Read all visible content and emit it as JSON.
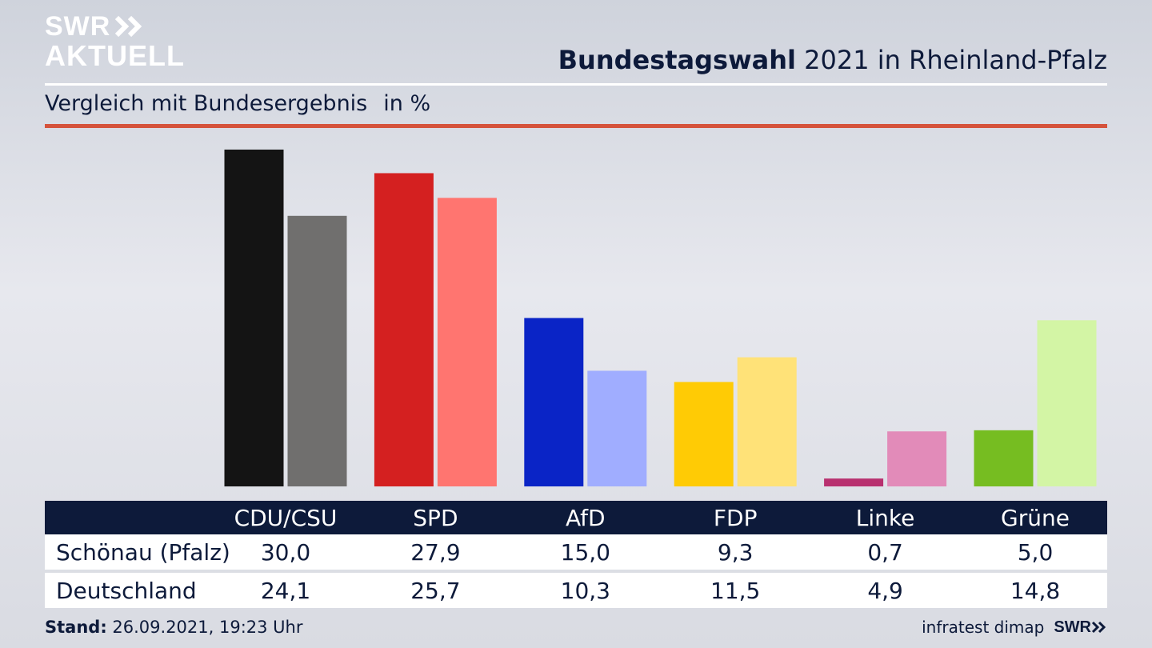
{
  "brand": {
    "logo_line1": "SWR",
    "logo_line2": "AKTUELL",
    "footer_logo": "SWR"
  },
  "header": {
    "title_bold": "Bundestagswahl",
    "title_rest": " 2021 in Rheinland-Pfalz"
  },
  "subtitle": {
    "text": "Vergleich mit Bundesergebnis",
    "unit": "in %"
  },
  "footer": {
    "stand_label": "Stand:",
    "stand_value": " 26.09.2021, 19:23 Uhr",
    "source": "infratest dimap"
  },
  "chart_data": {
    "type": "bar",
    "title": "Bundestagswahl 2021 in Rheinland-Pfalz",
    "subtitle": "Vergleich mit Bundesergebnis",
    "unit": "in %",
    "categories": [
      "CDU/CSU",
      "SPD",
      "AfD",
      "FDP",
      "Linke",
      "Grüne"
    ],
    "series": [
      {
        "name": "Schönau (Pfalz)",
        "values": [
          30.0,
          27.9,
          15.0,
          9.3,
          0.7,
          5.0
        ],
        "labels": [
          "30,0",
          "27,9",
          "15,0",
          "9,3",
          "0,7",
          "5,0"
        ]
      },
      {
        "name": "Deutschland",
        "values": [
          24.1,
          25.7,
          10.3,
          11.5,
          4.9,
          14.8
        ],
        "labels": [
          "24,1",
          "25,7",
          "10,3",
          "11,5",
          "4,9",
          "14,8"
        ]
      }
    ],
    "colors": {
      "primary": [
        "#141414",
        "#d42020",
        "#0a24c6",
        "#ffcb05",
        "#b8306f",
        "#76bd21"
      ],
      "secondary": [
        "#706f6e",
        "#ff7570",
        "#a0adff",
        "#ffe278",
        "#e28bb9",
        "#d3f5a5"
      ]
    },
    "ylim": [
      0,
      30
    ],
    "grid": false,
    "legend": "table-below"
  }
}
